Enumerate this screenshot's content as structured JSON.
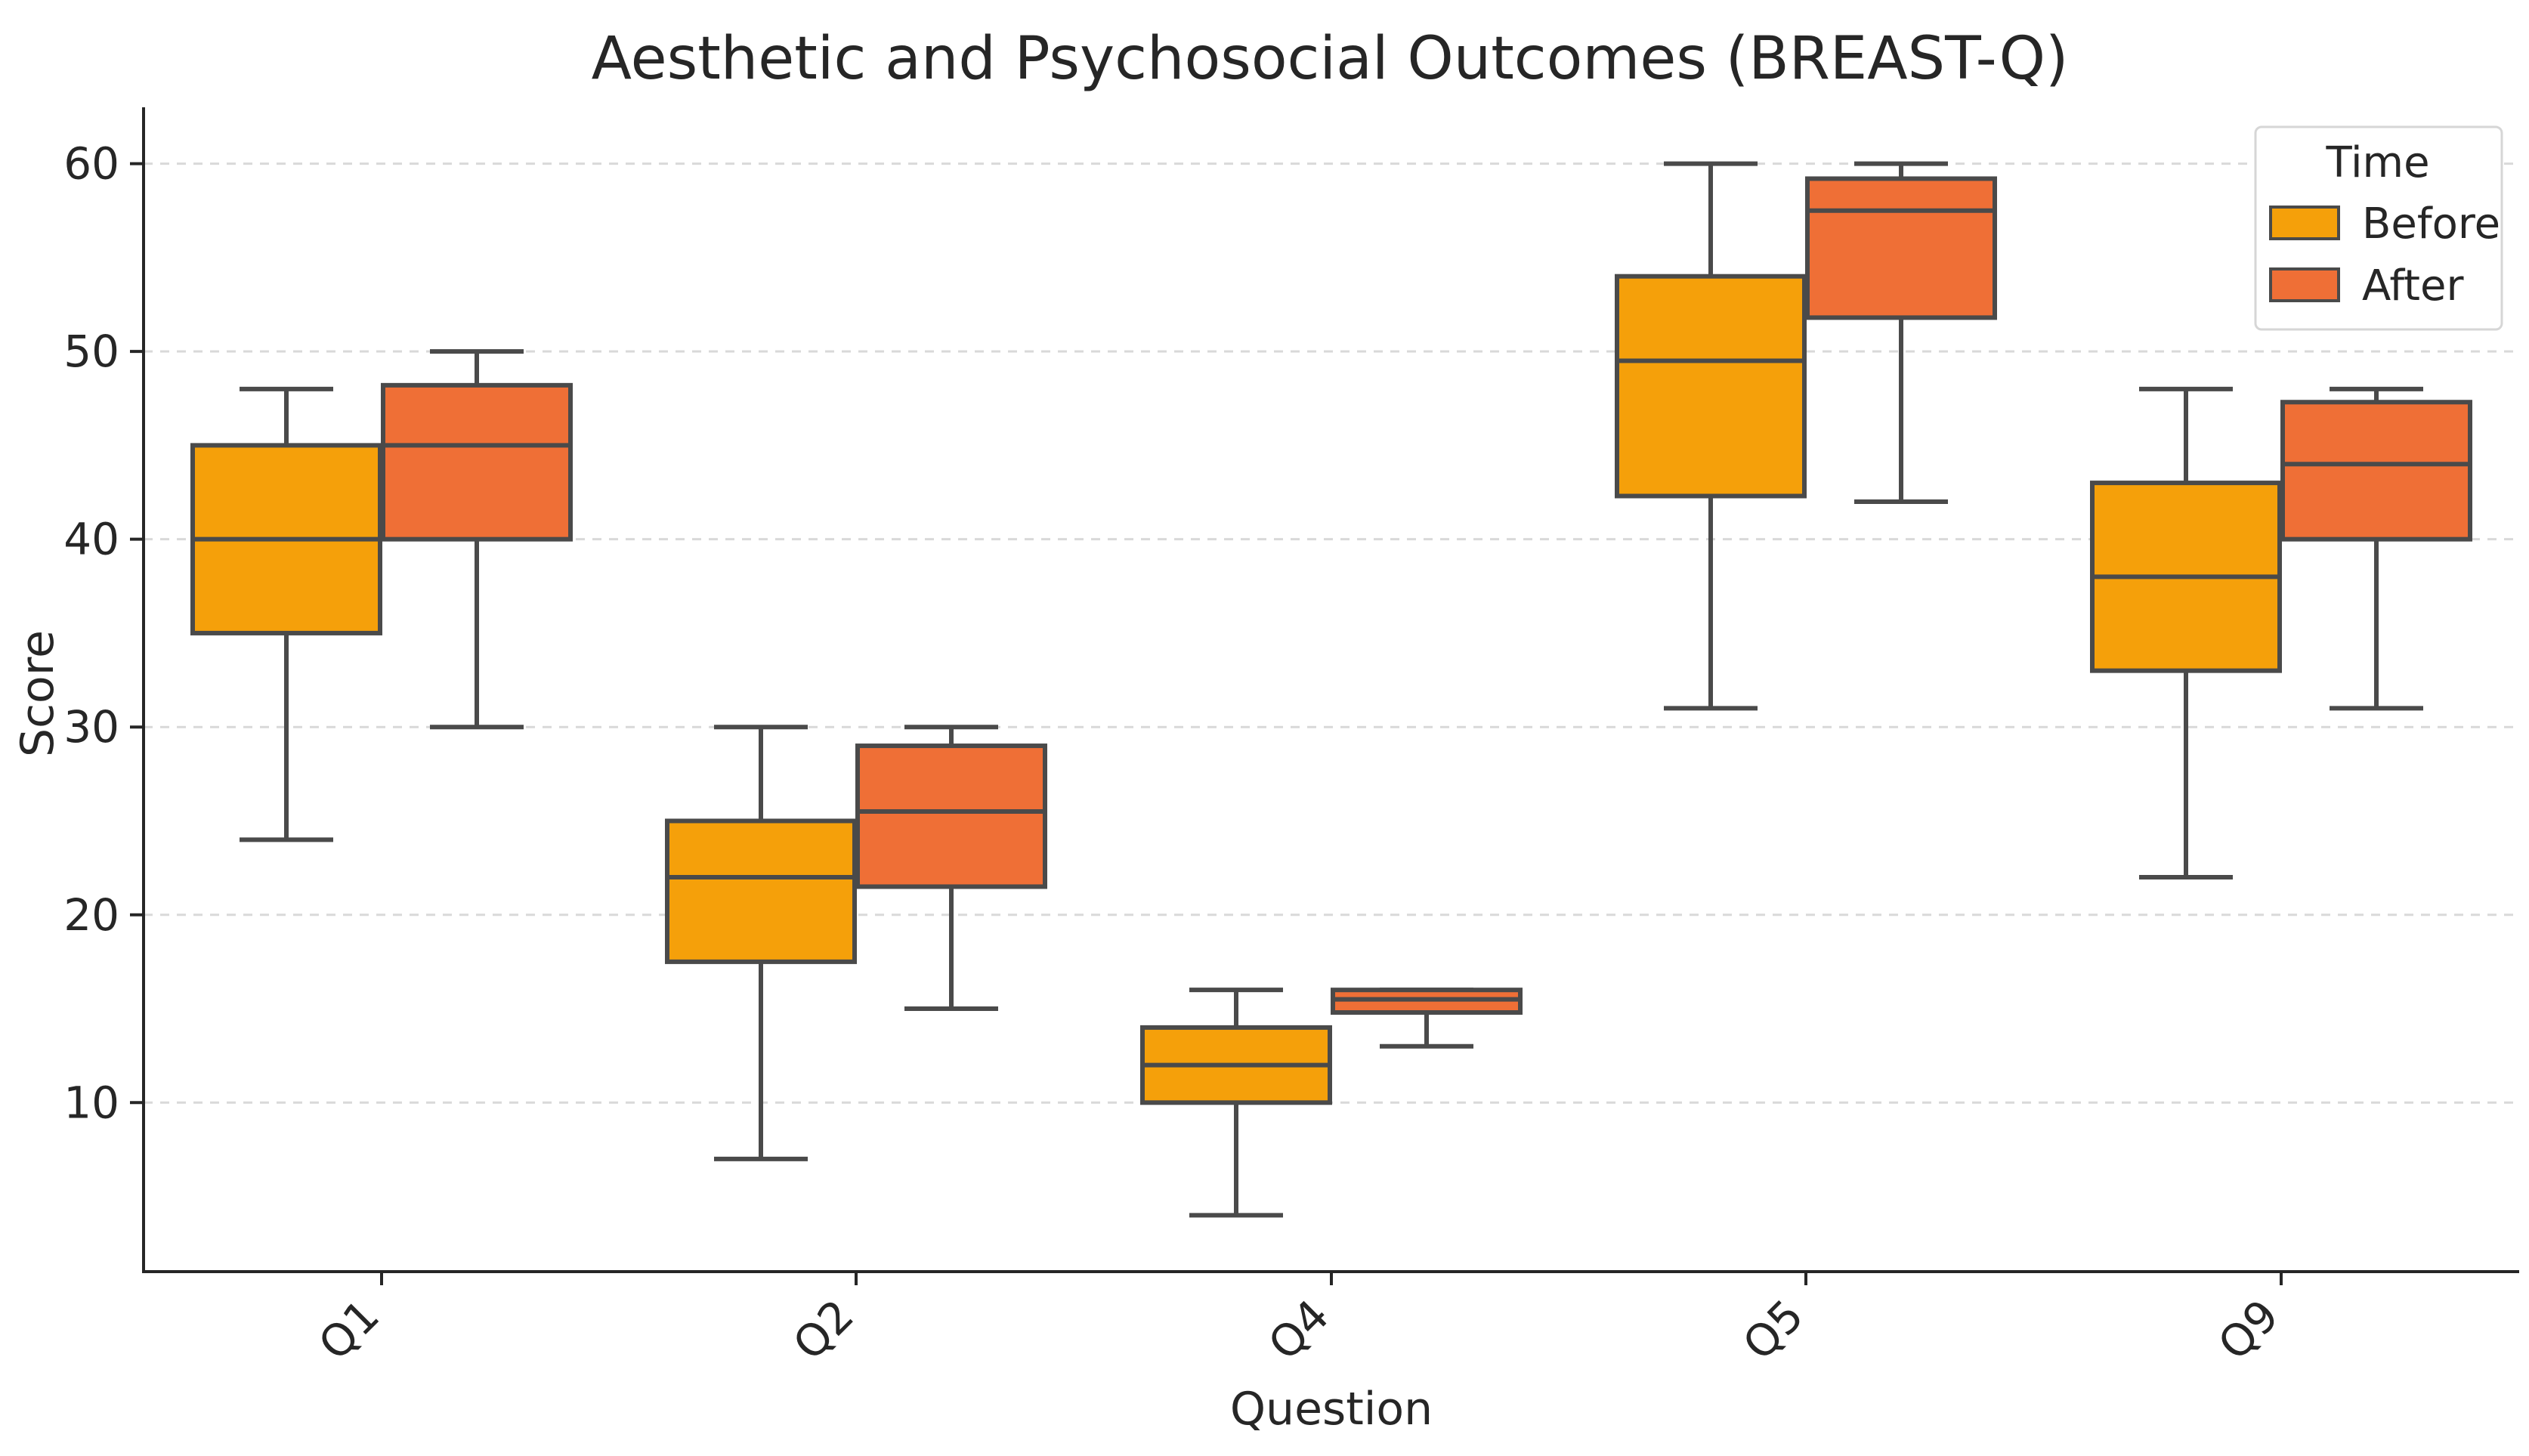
{
  "chart_data": {
    "type": "boxplot",
    "title": "Aesthetic and Psychosocial Outcomes (BREAST-Q)",
    "xlabel": "Question",
    "ylabel": "Score",
    "ylim": [
      1,
      63
    ],
    "yticks": [
      10,
      20,
      30,
      40,
      50,
      60
    ],
    "categories": [
      "Q1",
      "Q2",
      "Q4",
      "Q5",
      "Q9"
    ],
    "grid": "horizontal dashed",
    "legend": {
      "title": "Time",
      "position": "top-right",
      "entries": [
        "Before",
        "After"
      ]
    },
    "series": [
      {
        "name": "Before",
        "color": "#F5A00A",
        "boxes": [
          {
            "category": "Q1",
            "min": 24,
            "q1": 35,
            "median": 40,
            "q3": 45,
            "max": 48
          },
          {
            "category": "Q2",
            "min": 7,
            "q1": 17.5,
            "median": 22,
            "q3": 25,
            "max": 30
          },
          {
            "category": "Q4",
            "min": 4,
            "q1": 10,
            "median": 12,
            "q3": 14,
            "max": 16
          },
          {
            "category": "Q5",
            "min": 31,
            "q1": 42.3,
            "median": 49.5,
            "q3": 54,
            "max": 60
          },
          {
            "category": "Q9",
            "min": 22,
            "q1": 33,
            "median": 38,
            "q3": 43,
            "max": 48
          }
        ]
      },
      {
        "name": "After",
        "color": "#EF6F36",
        "boxes": [
          {
            "category": "Q1",
            "min": 30,
            "q1": 40,
            "median": 45,
            "q3": 48.2,
            "max": 50
          },
          {
            "category": "Q2",
            "min": 15,
            "q1": 21.5,
            "median": 25.5,
            "q3": 29,
            "max": 30
          },
          {
            "category": "Q4",
            "min": 13,
            "q1": 14.8,
            "median": 15.5,
            "q3": 16,
            "max": 16
          },
          {
            "category": "Q5",
            "min": 42,
            "q1": 51.8,
            "median": 57.5,
            "q3": 59.2,
            "max": 60
          },
          {
            "category": "Q9",
            "min": 31,
            "q1": 40,
            "median": 44,
            "q3": 47.3,
            "max": 48
          }
        ]
      }
    ]
  }
}
